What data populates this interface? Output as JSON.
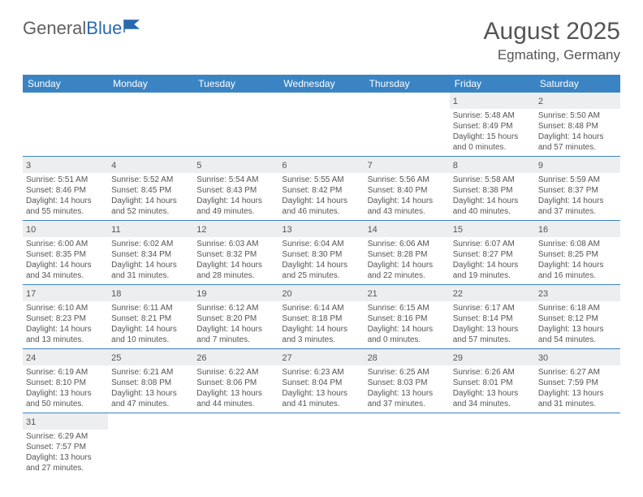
{
  "logo": {
    "text1": "General",
    "text2": "Blue",
    "flag_color": "#2969b0"
  },
  "header": {
    "month_title": "August 2025",
    "location": "Egmating, Germany"
  },
  "colors": {
    "header_bg": "#3b84c4",
    "header_text": "#ffffff",
    "cell_border": "#3b84c4",
    "daynum_bg": "#eceeef",
    "text": "#555555",
    "page_bg": "#ffffff"
  },
  "weekdays": [
    "Sunday",
    "Monday",
    "Tuesday",
    "Wednesday",
    "Thursday",
    "Friday",
    "Saturday"
  ],
  "weeks": [
    [
      null,
      null,
      null,
      null,
      null,
      {
        "d": "1",
        "sr": "Sunrise: 5:48 AM",
        "ss": "Sunset: 8:49 PM",
        "dl1": "Daylight: 15 hours",
        "dl2": "and 0 minutes."
      },
      {
        "d": "2",
        "sr": "Sunrise: 5:50 AM",
        "ss": "Sunset: 8:48 PM",
        "dl1": "Daylight: 14 hours",
        "dl2": "and 57 minutes."
      }
    ],
    [
      {
        "d": "3",
        "sr": "Sunrise: 5:51 AM",
        "ss": "Sunset: 8:46 PM",
        "dl1": "Daylight: 14 hours",
        "dl2": "and 55 minutes."
      },
      {
        "d": "4",
        "sr": "Sunrise: 5:52 AM",
        "ss": "Sunset: 8:45 PM",
        "dl1": "Daylight: 14 hours",
        "dl2": "and 52 minutes."
      },
      {
        "d": "5",
        "sr": "Sunrise: 5:54 AM",
        "ss": "Sunset: 8:43 PM",
        "dl1": "Daylight: 14 hours",
        "dl2": "and 49 minutes."
      },
      {
        "d": "6",
        "sr": "Sunrise: 5:55 AM",
        "ss": "Sunset: 8:42 PM",
        "dl1": "Daylight: 14 hours",
        "dl2": "and 46 minutes."
      },
      {
        "d": "7",
        "sr": "Sunrise: 5:56 AM",
        "ss": "Sunset: 8:40 PM",
        "dl1": "Daylight: 14 hours",
        "dl2": "and 43 minutes."
      },
      {
        "d": "8",
        "sr": "Sunrise: 5:58 AM",
        "ss": "Sunset: 8:38 PM",
        "dl1": "Daylight: 14 hours",
        "dl2": "and 40 minutes."
      },
      {
        "d": "9",
        "sr": "Sunrise: 5:59 AM",
        "ss": "Sunset: 8:37 PM",
        "dl1": "Daylight: 14 hours",
        "dl2": "and 37 minutes."
      }
    ],
    [
      {
        "d": "10",
        "sr": "Sunrise: 6:00 AM",
        "ss": "Sunset: 8:35 PM",
        "dl1": "Daylight: 14 hours",
        "dl2": "and 34 minutes."
      },
      {
        "d": "11",
        "sr": "Sunrise: 6:02 AM",
        "ss": "Sunset: 8:34 PM",
        "dl1": "Daylight: 14 hours",
        "dl2": "and 31 minutes."
      },
      {
        "d": "12",
        "sr": "Sunrise: 6:03 AM",
        "ss": "Sunset: 8:32 PM",
        "dl1": "Daylight: 14 hours",
        "dl2": "and 28 minutes."
      },
      {
        "d": "13",
        "sr": "Sunrise: 6:04 AM",
        "ss": "Sunset: 8:30 PM",
        "dl1": "Daylight: 14 hours",
        "dl2": "and 25 minutes."
      },
      {
        "d": "14",
        "sr": "Sunrise: 6:06 AM",
        "ss": "Sunset: 8:28 PM",
        "dl1": "Daylight: 14 hours",
        "dl2": "and 22 minutes."
      },
      {
        "d": "15",
        "sr": "Sunrise: 6:07 AM",
        "ss": "Sunset: 8:27 PM",
        "dl1": "Daylight: 14 hours",
        "dl2": "and 19 minutes."
      },
      {
        "d": "16",
        "sr": "Sunrise: 6:08 AM",
        "ss": "Sunset: 8:25 PM",
        "dl1": "Daylight: 14 hours",
        "dl2": "and 16 minutes."
      }
    ],
    [
      {
        "d": "17",
        "sr": "Sunrise: 6:10 AM",
        "ss": "Sunset: 8:23 PM",
        "dl1": "Daylight: 14 hours",
        "dl2": "and 13 minutes."
      },
      {
        "d": "18",
        "sr": "Sunrise: 6:11 AM",
        "ss": "Sunset: 8:21 PM",
        "dl1": "Daylight: 14 hours",
        "dl2": "and 10 minutes."
      },
      {
        "d": "19",
        "sr": "Sunrise: 6:12 AM",
        "ss": "Sunset: 8:20 PM",
        "dl1": "Daylight: 14 hours",
        "dl2": "and 7 minutes."
      },
      {
        "d": "20",
        "sr": "Sunrise: 6:14 AM",
        "ss": "Sunset: 8:18 PM",
        "dl1": "Daylight: 14 hours",
        "dl2": "and 3 minutes."
      },
      {
        "d": "21",
        "sr": "Sunrise: 6:15 AM",
        "ss": "Sunset: 8:16 PM",
        "dl1": "Daylight: 14 hours",
        "dl2": "and 0 minutes."
      },
      {
        "d": "22",
        "sr": "Sunrise: 6:17 AM",
        "ss": "Sunset: 8:14 PM",
        "dl1": "Daylight: 13 hours",
        "dl2": "and 57 minutes."
      },
      {
        "d": "23",
        "sr": "Sunrise: 6:18 AM",
        "ss": "Sunset: 8:12 PM",
        "dl1": "Daylight: 13 hours",
        "dl2": "and 54 minutes."
      }
    ],
    [
      {
        "d": "24",
        "sr": "Sunrise: 6:19 AM",
        "ss": "Sunset: 8:10 PM",
        "dl1": "Daylight: 13 hours",
        "dl2": "and 50 minutes."
      },
      {
        "d": "25",
        "sr": "Sunrise: 6:21 AM",
        "ss": "Sunset: 8:08 PM",
        "dl1": "Daylight: 13 hours",
        "dl2": "and 47 minutes."
      },
      {
        "d": "26",
        "sr": "Sunrise: 6:22 AM",
        "ss": "Sunset: 8:06 PM",
        "dl1": "Daylight: 13 hours",
        "dl2": "and 44 minutes."
      },
      {
        "d": "27",
        "sr": "Sunrise: 6:23 AM",
        "ss": "Sunset: 8:04 PM",
        "dl1": "Daylight: 13 hours",
        "dl2": "and 41 minutes."
      },
      {
        "d": "28",
        "sr": "Sunrise: 6:25 AM",
        "ss": "Sunset: 8:03 PM",
        "dl1": "Daylight: 13 hours",
        "dl2": "and 37 minutes."
      },
      {
        "d": "29",
        "sr": "Sunrise: 6:26 AM",
        "ss": "Sunset: 8:01 PM",
        "dl1": "Daylight: 13 hours",
        "dl2": "and 34 minutes."
      },
      {
        "d": "30",
        "sr": "Sunrise: 6:27 AM",
        "ss": "Sunset: 7:59 PM",
        "dl1": "Daylight: 13 hours",
        "dl2": "and 31 minutes."
      }
    ],
    [
      {
        "d": "31",
        "sr": "Sunrise: 6:29 AM",
        "ss": "Sunset: 7:57 PM",
        "dl1": "Daylight: 13 hours",
        "dl2": "and 27 minutes."
      },
      null,
      null,
      null,
      null,
      null,
      null
    ]
  ]
}
